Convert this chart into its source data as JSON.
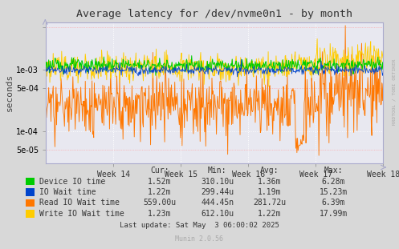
{
  "title": "Average latency for /dev/nvme0n1 - by month",
  "ylabel": "seconds",
  "xlabel_ticks": [
    "Week 14",
    "Week 15",
    "Week 16",
    "Week 17",
    "Week 18"
  ],
  "bg_color": "#d8d8d8",
  "plot_bg_color": "#e8e8f0",
  "legend": [
    {
      "label": "Device IO time",
      "color": "#00cc00"
    },
    {
      "label": "IO Wait time",
      "color": "#0044cc"
    },
    {
      "label": "Read IO Wait time",
      "color": "#ff7700"
    },
    {
      "label": "Write IO Wait time",
      "color": "#ffcc00"
    }
  ],
  "legend_table": {
    "headers": [
      "Cur:",
      "Min:",
      "Avg:",
      "Max:"
    ],
    "rows": [
      [
        "1.52m",
        "310.10u",
        "1.36m",
        "6.28m"
      ],
      [
        "1.22m",
        "299.44u",
        "1.19m",
        "15.23m"
      ],
      [
        "559.00u",
        "444.45n",
        "281.72u",
        "6.39m"
      ],
      [
        "1.23m",
        "612.10u",
        "1.22m",
        "17.99m"
      ]
    ]
  },
  "last_update": "Last update: Sat May  3 06:00:02 2025",
  "munin_version": "Munin 2.0.56",
  "rrdtool_label": "RRDTOOL / TOBI OETIKER",
  "n_points": 600,
  "yticks_major": [
    0.001,
    0.0001
  ],
  "yticks_minor_labels": [
    0.0005,
    5e-05
  ],
  "ymin": 3e-05,
  "ymax": 0.006
}
